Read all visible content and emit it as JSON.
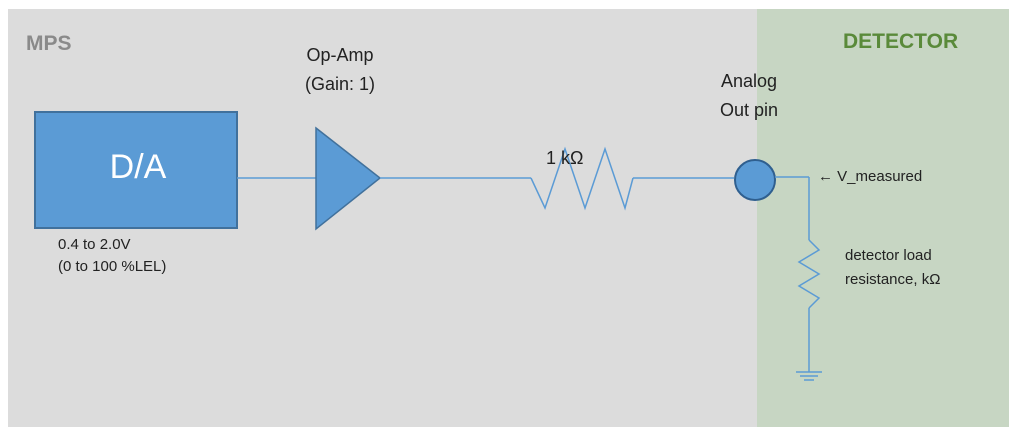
{
  "sections": {
    "mps": {
      "label": "MPS",
      "color": "#8a8a8a",
      "bg": "#dcdcdc"
    },
    "detector": {
      "label": "DETECTOR",
      "color": "#5a8a3a",
      "bg": "#c7d6c3"
    }
  },
  "da_block": {
    "label": "D/A",
    "fill": "#5b9bd5",
    "stroke": "#41719c"
  },
  "range": {
    "line1": "0.4 to 2.0V",
    "line2": "(0 to 100 %LEL)"
  },
  "opamp": {
    "line1": "Op-Amp",
    "line2": "(Gain: 1)"
  },
  "resistor": {
    "label": "1 kΩ"
  },
  "analog_out": {
    "line1": "Analog",
    "line2": "Out pin"
  },
  "v_measured": {
    "label": "← V_measured"
  },
  "load": {
    "line1": "detector load",
    "line2": "resistance, kΩ"
  },
  "wire_color": "#5b9bd5"
}
